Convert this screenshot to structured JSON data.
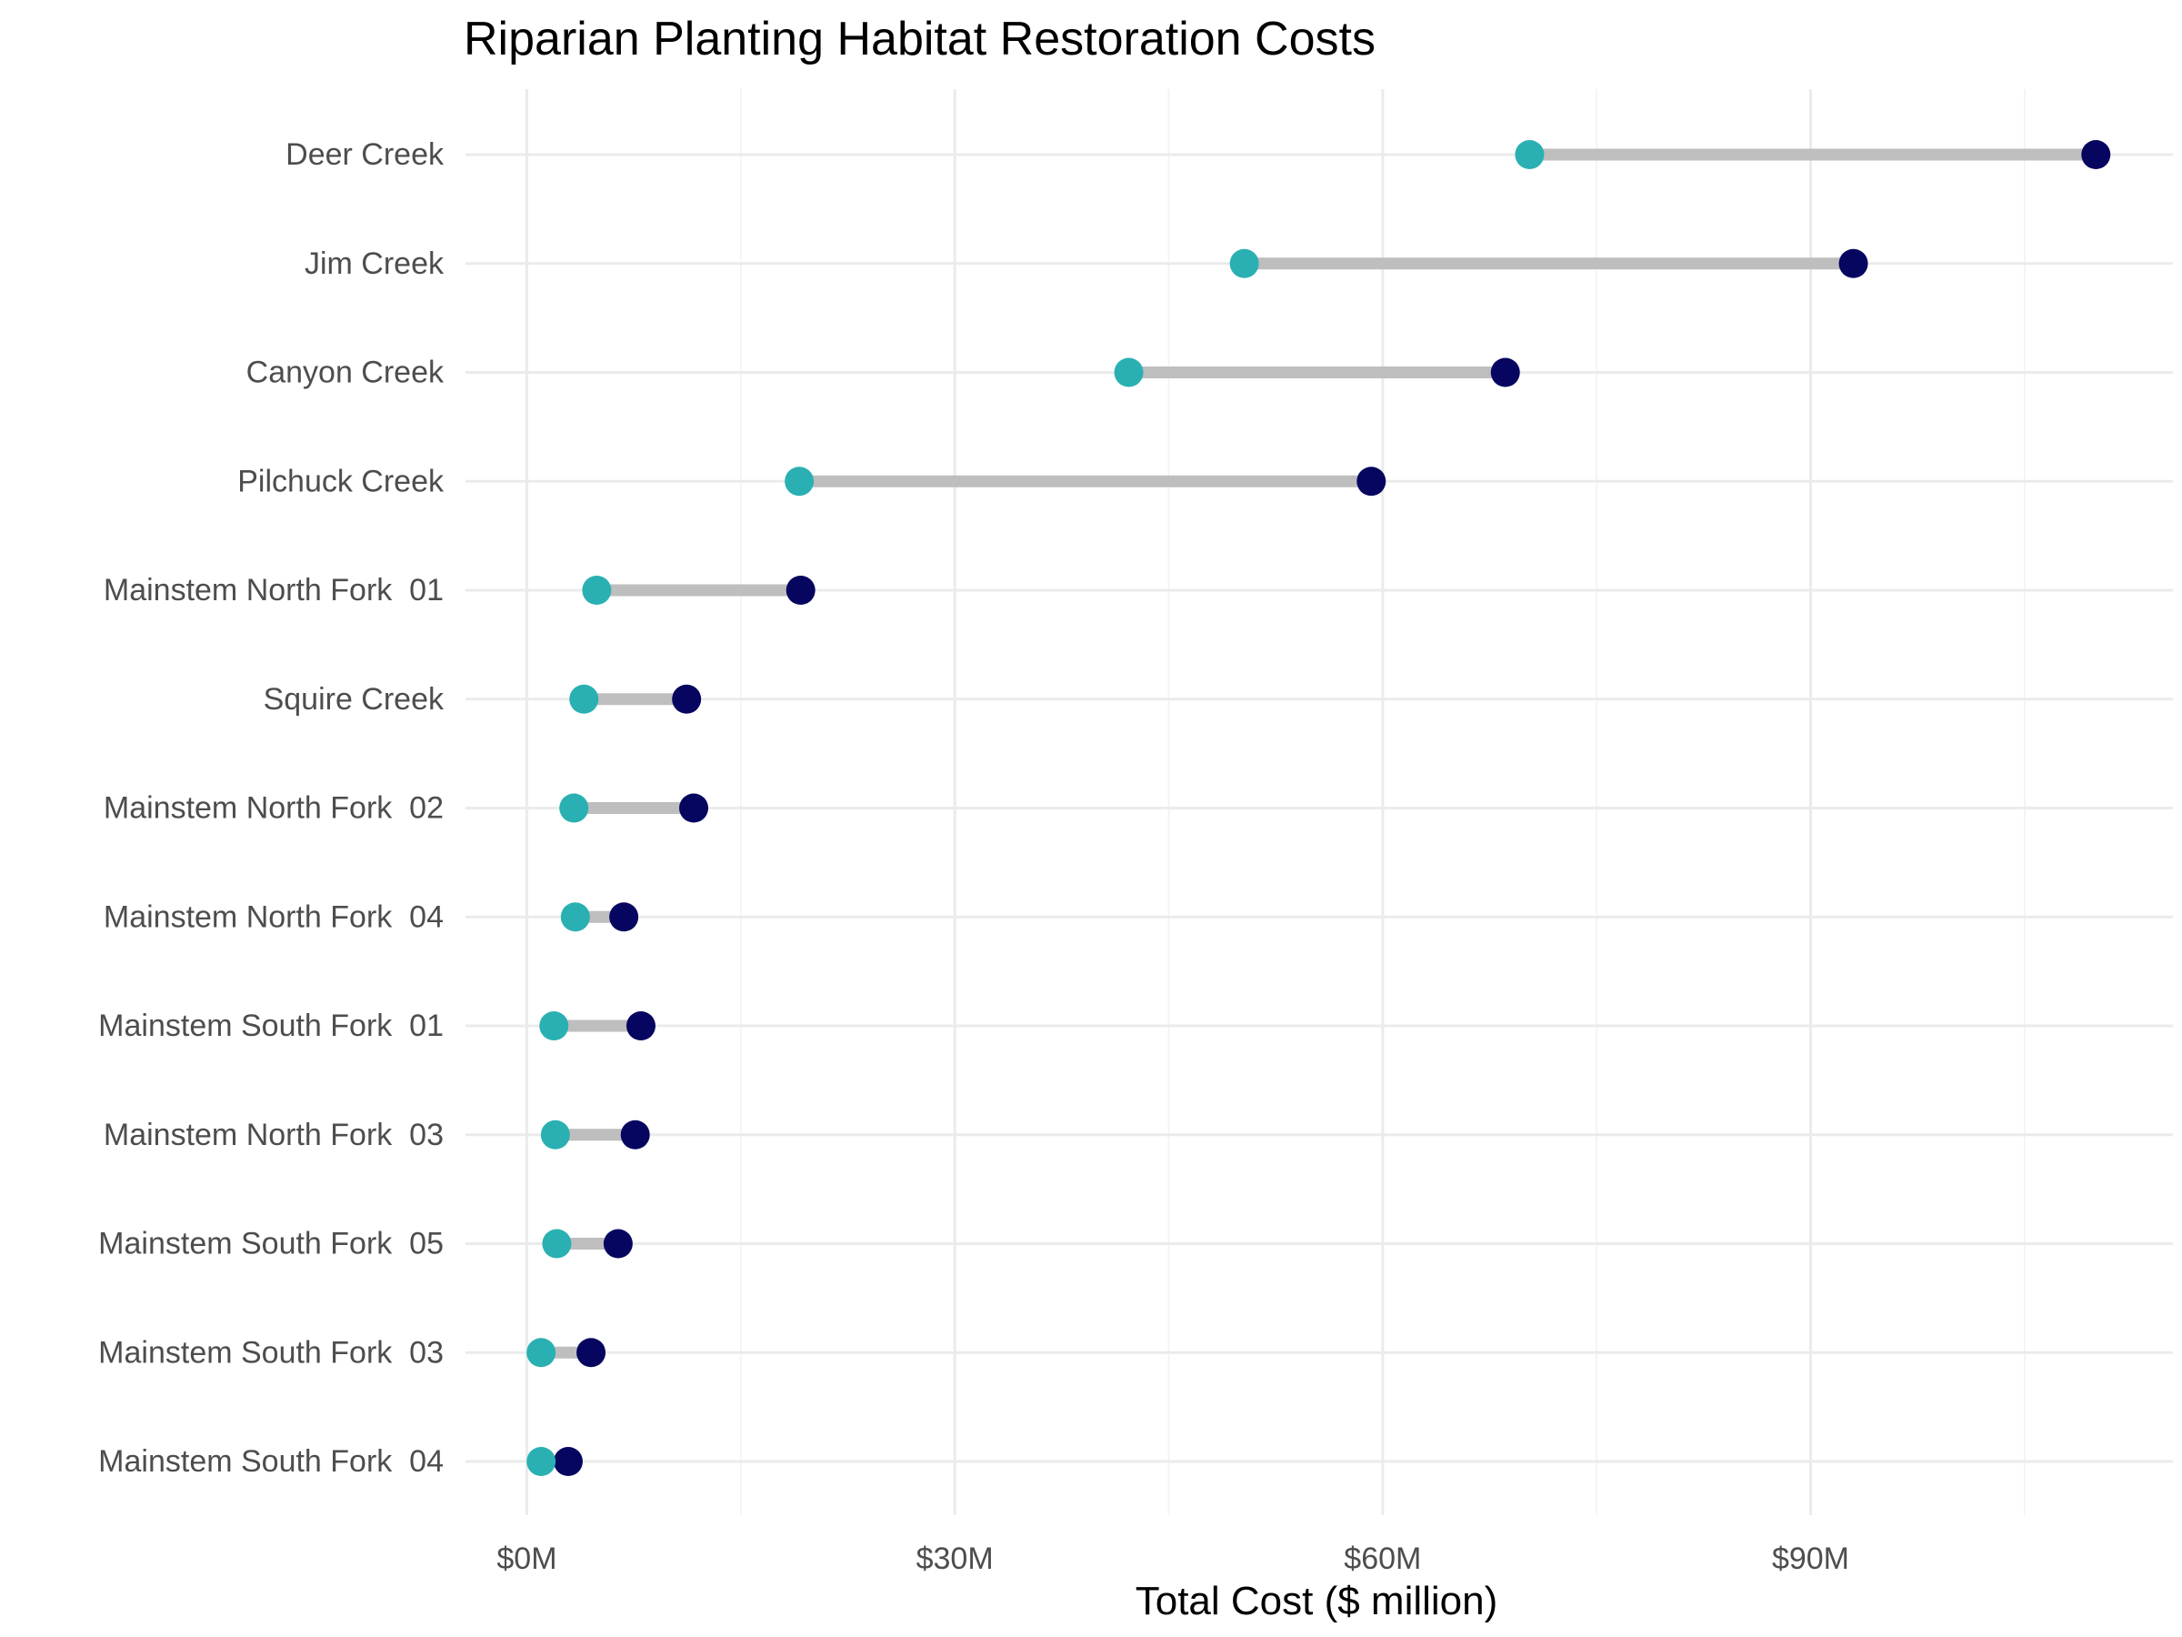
{
  "chart_data": {
    "type": "dumbbell",
    "title": "Riparian Planting Habitat Restoration Costs",
    "xlabel": "Total Cost ($ million)",
    "ylabel": "",
    "units": "$ million",
    "xlim": [
      -4.3,
      115.4
    ],
    "x_ticks": [
      0,
      30,
      60,
      90
    ],
    "x_tick_labels": [
      "$0M",
      "$30M",
      "$60M",
      "$90M"
    ],
    "x_minor_ticks": [
      15,
      45,
      75,
      105
    ],
    "grid": true,
    "legend": "none",
    "categories": [
      "Deer Creek",
      "Jim Creek",
      "Canyon Creek",
      "Pilchuck Creek",
      "Mainstem North Fork  01",
      "Squire Creek",
      "Mainstem North Fork  02",
      "Mainstem North Fork  04",
      "Mainstem South Fork  01",
      "Mainstem North Fork  03",
      "Mainstem South Fork  05",
      "Mainstem South Fork  03",
      "Mainstem South Fork  04"
    ],
    "series": [
      {
        "values": [
          70.3,
          50.3,
          42.2,
          19.1,
          4.9,
          4.0,
          3.3,
          3.4,
          1.9,
          2.0,
          2.1,
          1.0,
          1.0
        ]
      },
      {
        "values": [
          110.0,
          93.0,
          68.6,
          59.2,
          19.2,
          11.2,
          11.7,
          6.8,
          8.0,
          7.6,
          6.4,
          4.5,
          2.9
        ]
      }
    ],
    "colors": {
      "low": "#2ab0b2",
      "high": "#060660",
      "segment": "#bebebe"
    }
  }
}
